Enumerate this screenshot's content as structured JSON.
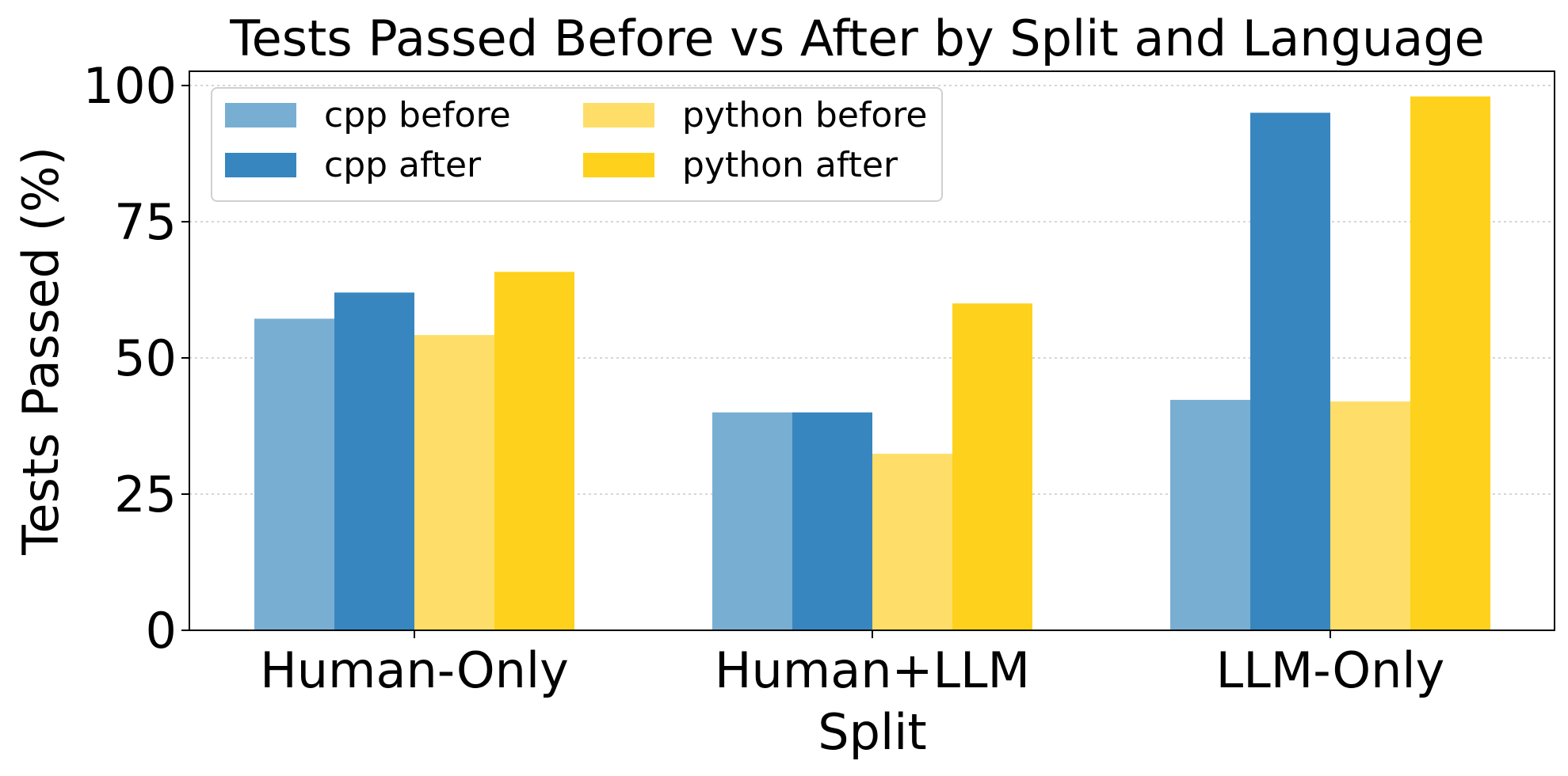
{
  "chart_data": {
    "type": "bar",
    "title": "Tests Passed Before vs After by Split and Language",
    "xlabel": "Split",
    "ylabel": "Tests Passed (%)",
    "categories": [
      "Human-Only",
      "Human+LLM",
      "LLM-Only"
    ],
    "ylim": [
      0,
      100
    ],
    "yticks": [
      0,
      25,
      50,
      75,
      100
    ],
    "grid": true,
    "legend_position": "top-left",
    "legend_columns": 2,
    "series": [
      {
        "name": "cpp before",
        "color": "#79AED3",
        "values": [
          57.2,
          40.0,
          42.3
        ]
      },
      {
        "name": "cpp after",
        "color": "#3886BF",
        "values": [
          62.0,
          40.0,
          95.0
        ]
      },
      {
        "name": "python before",
        "color": "#FEDE68",
        "values": [
          54.2,
          32.4,
          42.0
        ]
      },
      {
        "name": "python after",
        "color": "#FED21C",
        "values": [
          65.8,
          60.0,
          98.0
        ]
      }
    ]
  }
}
